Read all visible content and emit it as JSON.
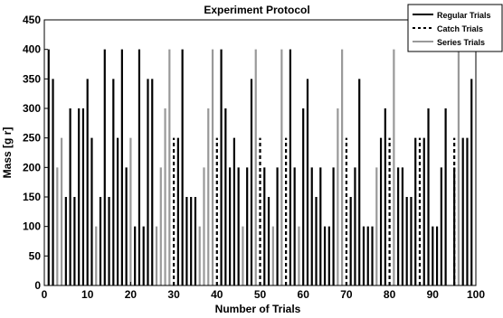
{
  "chart_data": {
    "type": "bar",
    "title": "Experiment Protocol",
    "xlabel": "Number of Trials",
    "ylabel": "Mass [g r]",
    "xlim": [
      0,
      100
    ],
    "ylim": [
      0,
      450
    ],
    "xticks": [
      0,
      10,
      20,
      30,
      40,
      50,
      60,
      70,
      80,
      90,
      100
    ],
    "yticks": [
      0,
      50,
      100,
      150,
      200,
      250,
      300,
      350,
      400,
      450
    ],
    "grid": false,
    "legend_position": "top-right",
    "series": [
      {
        "name": "Regular Trials",
        "color": "#000000",
        "style": "solid",
        "points": [
          [
            1,
            400
          ],
          [
            2,
            350
          ],
          [
            5,
            150
          ],
          [
            6,
            300
          ],
          [
            7,
            150
          ],
          [
            8,
            300
          ],
          [
            9,
            300
          ],
          [
            10,
            350
          ],
          [
            11,
            250
          ],
          [
            13,
            150
          ],
          [
            14,
            400
          ],
          [
            15,
            150
          ],
          [
            16,
            350
          ],
          [
            17,
            250
          ],
          [
            18,
            400
          ],
          [
            19,
            200
          ],
          [
            21,
            100
          ],
          [
            22,
            400
          ],
          [
            23,
            100
          ],
          [
            24,
            350
          ],
          [
            25,
            350
          ],
          [
            31,
            250
          ],
          [
            32,
            400
          ],
          [
            33,
            150
          ],
          [
            34,
            150
          ],
          [
            35,
            150
          ],
          [
            41,
            400
          ],
          [
            42,
            300
          ],
          [
            43,
            200
          ],
          [
            44,
            250
          ],
          [
            45,
            200
          ],
          [
            47,
            200
          ],
          [
            48,
            350
          ],
          [
            51,
            200
          ],
          [
            52,
            150
          ],
          [
            54,
            200
          ],
          [
            57,
            400
          ],
          [
            58,
            200
          ],
          [
            60,
            300
          ],
          [
            61,
            350
          ],
          [
            62,
            200
          ],
          [
            63,
            150
          ],
          [
            64,
            200
          ],
          [
            65,
            100
          ],
          [
            66,
            100
          ],
          [
            67,
            200
          ],
          [
            71,
            150
          ],
          [
            72,
            200
          ],
          [
            73,
            350
          ],
          [
            74,
            100
          ],
          [
            75,
            100
          ],
          [
            76,
            100
          ],
          [
            78,
            250
          ],
          [
            79,
            300
          ],
          [
            82,
            200
          ],
          [
            83,
            200
          ],
          [
            84,
            150
          ],
          [
            85,
            150
          ],
          [
            86,
            250
          ],
          [
            88,
            250
          ],
          [
            89,
            300
          ],
          [
            90,
            100
          ],
          [
            91,
            100
          ],
          [
            92,
            200
          ],
          [
            93,
            300
          ],
          [
            95,
            200
          ],
          [
            97,
            250
          ],
          [
            98,
            250
          ],
          [
            99,
            350
          ]
        ]
      },
      {
        "name": "Catch Trials",
        "color": "#000000",
        "style": "dashed",
        "points": [
          [
            30,
            250
          ],
          [
            40,
            250
          ],
          [
            50,
            250
          ],
          [
            56,
            250
          ],
          [
            70,
            250
          ],
          [
            80,
            250
          ],
          [
            87,
            250
          ],
          [
            95,
            250
          ]
        ]
      },
      {
        "name": "Series Trials",
        "color": "#999999",
        "style": "solid",
        "points": [
          [
            3,
            200
          ],
          [
            4,
            250
          ],
          [
            12,
            100
          ],
          [
            20,
            250
          ],
          [
            26,
            100
          ],
          [
            27,
            200
          ],
          [
            28,
            300
          ],
          [
            29,
            400
          ],
          [
            36,
            100
          ],
          [
            37,
            200
          ],
          [
            38,
            300
          ],
          [
            39,
            400
          ],
          [
            46,
            100
          ],
          [
            49,
            400
          ],
          [
            53,
            100
          ],
          [
            55,
            400
          ],
          [
            59,
            100
          ],
          [
            68,
            300
          ],
          [
            69,
            400
          ],
          [
            77,
            200
          ],
          [
            81,
            400
          ],
          [
            96,
            400
          ]
        ]
      }
    ]
  }
}
